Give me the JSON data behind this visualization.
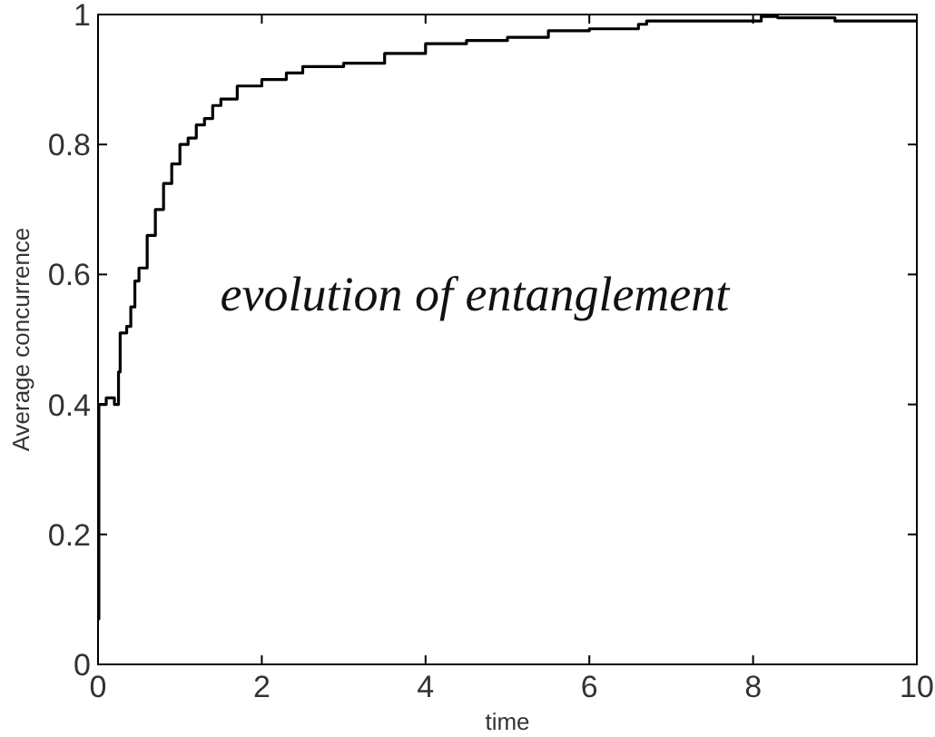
{
  "chart_data": {
    "type": "step",
    "xlabel": "time",
    "ylabel": "Average concurrence",
    "annotations": [
      "evolution of entanglement"
    ],
    "x": [
      0,
      0.01,
      0.1,
      0.2,
      0.25,
      0.27,
      0.35,
      0.4,
      0.45,
      0.5,
      0.6,
      0.7,
      0.8,
      0.9,
      1.0,
      1.1,
      1.2,
      1.3,
      1.4,
      1.5,
      1.7,
      2.0,
      2.3,
      2.5,
      3.0,
      3.5,
      4.0,
      4.5,
      5.0,
      5.5,
      6.0,
      6.6,
      6.7,
      8.0,
      8.1,
      8.3,
      9.0,
      9.6,
      10
    ],
    "series": [
      {
        "color": "#000000",
        "values": [
          0.07,
          0.4,
          0.41,
          0.4,
          0.45,
          0.51,
          0.52,
          0.55,
          0.59,
          0.61,
          0.66,
          0.7,
          0.74,
          0.77,
          0.8,
          0.81,
          0.83,
          0.84,
          0.86,
          0.87,
          0.89,
          0.9,
          0.91,
          0.92,
          0.925,
          0.94,
          0.955,
          0.96,
          0.965,
          0.975,
          0.978,
          0.985,
          0.99,
          0.99,
          0.997,
          0.995,
          0.99,
          0.99,
          0.99
        ]
      }
    ],
    "xlim": [
      0,
      10
    ],
    "ylim": [
      0,
      1
    ],
    "xticks": [
      0,
      2,
      4,
      6,
      8,
      10
    ],
    "yticks": [
      0,
      0.2,
      0.4,
      0.6,
      0.8,
      1
    ],
    "grid": false,
    "marker": "none",
    "line_style": "solid"
  }
}
